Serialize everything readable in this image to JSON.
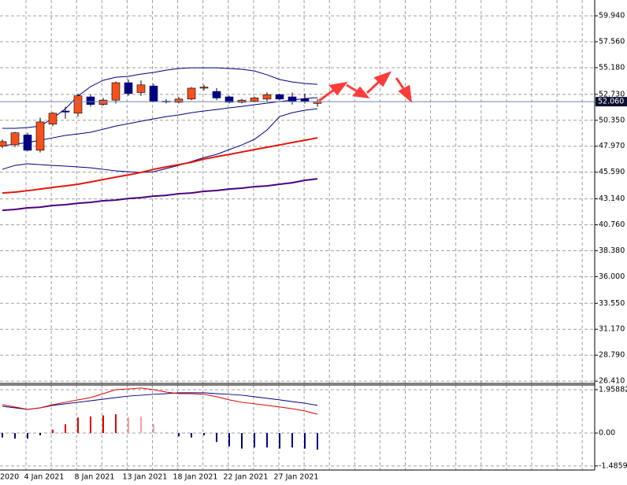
{
  "chart_data": [
    {
      "type": "candlestick",
      "categories": [
        "2020",
        null,
        null,
        "4 Jan 2021",
        null,
        null,
        null,
        "8 Jan 2021",
        null,
        null,
        null,
        "13 Jan 2021",
        null,
        null,
        null,
        "18 Jan 2021",
        null,
        null,
        null,
        "22 Jan 2021",
        null,
        null,
        null,
        "27 Jan 2021",
        null,
        null
      ],
      "open": [
        47.98,
        48.1,
        49.0,
        47.6,
        50.0,
        51.2,
        51.0,
        52.5,
        51.8,
        52.2,
        53.8,
        52.9,
        53.5,
        52.1,
        52.0,
        52.3,
        53.3,
        53.0,
        52.5,
        52.0,
        52.1,
        52.3,
        52.7,
        52.5,
        52.3,
        51.9
      ],
      "high": [
        48.6,
        49.3,
        49.2,
        50.6,
        51.1,
        51.6,
        52.8,
        52.7,
        52.4,
        53.9,
        54.1,
        54.0,
        53.7,
        52.3,
        52.5,
        53.4,
        53.6,
        53.3,
        52.6,
        52.3,
        52.5,
        52.9,
        52.8,
        52.9,
        52.8,
        52.3
      ],
      "low": [
        47.8,
        47.9,
        47.5,
        47.4,
        49.8,
        50.5,
        50.7,
        51.6,
        51.7,
        51.9,
        52.6,
        52.6,
        52.0,
        51.9,
        51.9,
        52.2,
        53.1,
        52.2,
        51.9,
        51.9,
        52.0,
        52.1,
        52.2,
        51.8,
        51.9,
        51.6
      ],
      "close": [
        48.4,
        49.2,
        47.6,
        50.2,
        51.0,
        51.1,
        52.6,
        51.8,
        52.2,
        53.8,
        52.8,
        53.6,
        52.1,
        52.05,
        52.3,
        53.3,
        53.4,
        52.4,
        52.0,
        52.2,
        52.4,
        52.7,
        52.3,
        52.1,
        52.1,
        52.06
      ],
      "up_color": "#f4511e",
      "down_color": "#000080",
      "series": [
        {
          "color": "#000080",
          "values": [
            49.61,
            49.61,
            49.68,
            49.82,
            50.54,
            51.41,
            52.57,
            53.44,
            54.02,
            54.3,
            54.38,
            54.59,
            54.74,
            54.95,
            55.1,
            55.17,
            55.17,
            55.17,
            55.1,
            55.03,
            54.88,
            54.52,
            54.09,
            53.87,
            53.73,
            53.65
          ]
        },
        {
          "color": "#000080",
          "values": [
            48.02,
            48.16,
            48.31,
            48.52,
            48.74,
            48.96,
            49.1,
            49.25,
            49.53,
            49.82,
            50.04,
            50.26,
            50.48,
            50.69,
            50.84,
            51.05,
            51.2,
            51.34,
            51.49,
            51.63,
            51.78,
            51.92,
            52.07,
            52.21,
            52.35,
            52.43
          ]
        },
        {
          "color": "#000080",
          "values": [
            45.85,
            46.21,
            46.36,
            46.28,
            46.21,
            46.14,
            46.07,
            45.99,
            45.85,
            45.71,
            45.63,
            45.56,
            45.63,
            45.92,
            46.21,
            46.57,
            46.93,
            47.22,
            47.66,
            48.09,
            48.6,
            49.46,
            50.69,
            51.05,
            51.27,
            51.41
          ]
        },
        {
          "color": "#e8140a",
          "width": 2,
          "values": [
            43.68,
            43.76,
            43.89,
            44.04,
            44.19,
            44.33,
            44.48,
            44.69,
            44.91,
            45.13,
            45.34,
            45.56,
            45.85,
            46.07,
            46.28,
            46.5,
            46.79,
            47.01,
            47.22,
            47.44,
            47.66,
            47.88,
            48.09,
            48.31,
            48.52,
            48.74
          ]
        },
        {
          "color": "#4b0082",
          "width": 2,
          "values": [
            42.09,
            42.17,
            42.31,
            42.38,
            42.53,
            42.6,
            42.74,
            42.82,
            42.96,
            43.03,
            43.17,
            43.25,
            43.39,
            43.46,
            43.61,
            43.68,
            43.83,
            43.9,
            44.04,
            44.12,
            44.26,
            44.33,
            44.48,
            44.62,
            44.84,
            44.98
          ]
        }
      ],
      "last_price": {
        "value": 52.06,
        "label": "52.060"
      },
      "ylim": [
        26.2,
        61.39
      ],
      "yticks": [
        {
          "value": 59.94,
          "label": "59.940"
        },
        {
          "value": 57.56,
          "label": "57.560"
        },
        {
          "value": 55.18,
          "label": "55.180"
        },
        {
          "value": 52.73,
          "label": "52.730"
        },
        {
          "value": 50.35,
          "label": "50.350"
        },
        {
          "value": 47.97,
          "label": "47.970"
        },
        {
          "value": 45.59,
          "label": "45.590"
        },
        {
          "value": 43.14,
          "label": "43.140"
        },
        {
          "value": 40.76,
          "label": "40.760"
        },
        {
          "value": 38.38,
          "label": "38.380"
        },
        {
          "value": 36,
          "label": "36.000"
        },
        {
          "value": 33.55,
          "label": "33.550"
        },
        {
          "value": 31.17,
          "label": "31.170"
        },
        {
          "value": 28.79,
          "label": "28.790"
        },
        {
          "value": 26.41,
          "label": "26.410"
        }
      ],
      "grid": true
    },
    {
      "type": "macd",
      "histogram": [
        -0.2,
        -0.25,
        -0.25,
        -0.1,
        0.15,
        0.4,
        0.7,
        0.75,
        0.8,
        0.85,
        0.7,
        0.75,
        0.4,
        0.05,
        -0.15,
        -0.2,
        -0.1,
        -0.4,
        -0.6,
        -0.7,
        -0.65,
        -0.65,
        -0.7,
        -0.65,
        -0.7,
        -0.75
      ],
      "histogram_colors": [
        "#000080",
        "#000080",
        "#000080",
        "#000080",
        "#e00000",
        "#e00000",
        "#e00000",
        "#e00000",
        "#e00000",
        "#e00000",
        "#f4a0a0",
        "#f4a0a0",
        "#f4a0a0",
        "#f4a0a0",
        "#000080",
        "#000080",
        "#000080",
        "#000080",
        "#000080",
        "#000080",
        "#000080",
        "#000080",
        "#000080",
        "#000080",
        "#000080",
        "#000080"
      ],
      "series": [
        {
          "color": "#000080",
          "values": [
            1.21,
            1.14,
            1.07,
            1.14,
            1.25,
            1.32,
            1.39,
            1.46,
            1.53,
            1.6,
            1.67,
            1.71,
            1.75,
            1.78,
            1.82,
            1.82,
            1.82,
            1.78,
            1.75,
            1.71,
            1.64,
            1.57,
            1.5,
            1.42,
            1.35,
            1.25
          ]
        },
        {
          "color": "#e00000",
          "values": [
            1.28,
            1.18,
            1.07,
            1.14,
            1.28,
            1.39,
            1.5,
            1.6,
            1.78,
            1.96,
            1.99,
            2.03,
            1.96,
            1.85,
            1.78,
            1.78,
            1.75,
            1.64,
            1.5,
            1.39,
            1.32,
            1.25,
            1.18,
            1.1,
            1.0,
            0.85
          ]
        }
      ],
      "ylim": [
        -1.67,
        2.17
      ],
      "yticks": [
        1.95882,
        {
          "value": 0,
          "label": "0.00"
        },
        -1.48596
      ],
      "grid": true
    }
  ]
}
